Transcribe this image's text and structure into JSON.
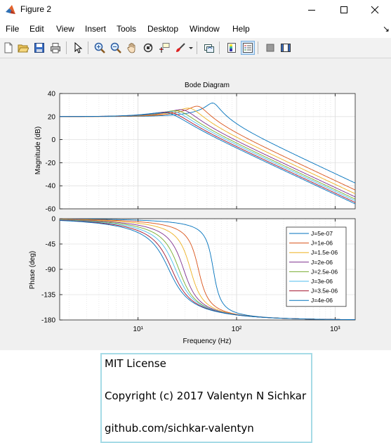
{
  "window": {
    "title": "Figure 2",
    "minimize_label": "—",
    "maximize_label": "☐",
    "close_label": "✕"
  },
  "menu": {
    "items": [
      "File",
      "Edit",
      "View",
      "Insert",
      "Tools",
      "Desktop",
      "Window",
      "Help"
    ],
    "overflow_arrow": "↘"
  },
  "toolbar": {
    "buttons": [
      "new-figure-icon",
      "open-file-icon",
      "save-icon",
      "print-icon",
      "pointer-icon",
      "zoom-in-icon",
      "zoom-out-icon",
      "pan-hand-icon",
      "rotate-3d-icon",
      "data-cursor-icon",
      "brush-icon",
      "link-plot-icon",
      "colorbar-icon",
      "legend-icon",
      "hide-plot-tools-icon",
      "show-plot-tools-icon"
    ]
  },
  "chart_data": {
    "type": "line",
    "title": "Bode Diagram",
    "xlabel": "Frequency  (Hz)",
    "x_scale": "log",
    "xlim": [
      1.6,
      1600
    ],
    "x_ticks": [
      10,
      100,
      1000
    ],
    "x_tick_labels": [
      "10¹",
      "10²",
      "10³"
    ],
    "grid": true,
    "magnitude": {
      "ylabel": "Magnitude (dB)",
      "ylim": [
        -60,
        40
      ],
      "y_ticks": [
        40,
        20,
        0,
        -20,
        -40,
        -60
      ],
      "y_tick_labels": [
        "40",
        "20",
        "0",
        "-20",
        "-40",
        "-60"
      ]
    },
    "phase": {
      "ylabel": "Phase (deg)",
      "ylim": [
        -180,
        0
      ],
      "y_ticks": [
        0,
        -45,
        -90,
        -135,
        -180
      ],
      "y_tick_labels": [
        "0",
        "-45",
        "-90",
        "-135",
        "-180"
      ]
    },
    "legend_position": "right",
    "series": [
      {
        "name": "J=5e-07",
        "color": "#0072BD",
        "natural_freq_hz": 58,
        "zeta": 0.13,
        "dc_gain_db": 20
      },
      {
        "name": "J=1e-06",
        "color": "#D95319",
        "natural_freq_hz": 41,
        "zeta": 0.18,
        "dc_gain_db": 20
      },
      {
        "name": "J=1.5e-06",
        "color": "#EDB120",
        "natural_freq_hz": 34,
        "zeta": 0.22,
        "dc_gain_db": 20
      },
      {
        "name": "J=2e-06",
        "color": "#7E2F8E",
        "natural_freq_hz": 29,
        "zeta": 0.26,
        "dc_gain_db": 20
      },
      {
        "name": "J=2.5e-06",
        "color": "#77AC30",
        "natural_freq_hz": 26,
        "zeta": 0.29,
        "dc_gain_db": 20
      },
      {
        "name": "J=3e-06",
        "color": "#4DBEEE",
        "natural_freq_hz": 24,
        "zeta": 0.32,
        "dc_gain_db": 20
      },
      {
        "name": "J=3.5e-06",
        "color": "#A2142F",
        "natural_freq_hz": 22,
        "zeta": 0.34,
        "dc_gain_db": 20
      },
      {
        "name": "J=4e-06",
        "color": "#0072BD",
        "natural_freq_hz": 20.5,
        "zeta": 0.36,
        "dc_gain_db": 20
      }
    ]
  },
  "license": {
    "line1": "MIT License",
    "line2": "Copyright (c) 2017 Valentyn N Sichkar",
    "line3": "github.com/sichkar-valentyn"
  }
}
